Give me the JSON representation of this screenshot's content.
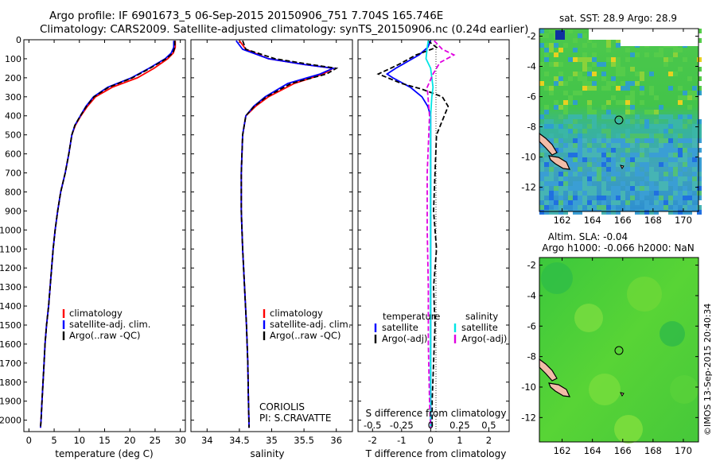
{
  "header": {
    "line1": "Argo profile: IF 6901673_5 06-Sep-2015 20150906_751 7.704S 165.746E",
    "line2": "Climatology: CARS2009. Satellite-adjusted climatology: synTS_20150906.nc (0.24d earlier)"
  },
  "colors": {
    "climatology": "#ff0000",
    "satellite": "#0000ff",
    "argo": "#000000",
    "sal_satellite": "#00e5e5",
    "sal_argo": "#e000e0"
  },
  "chart_data": [
    {
      "type": "line",
      "xlabel": "temperature (deg C)",
      "xlim": [
        -1,
        31
      ],
      "ylim": [
        2060,
        0
      ],
      "xticks": [
        0,
        5,
        10,
        15,
        20,
        25,
        30
      ],
      "yticks": [
        0,
        100,
        200,
        300,
        400,
        500,
        600,
        700,
        800,
        900,
        1000,
        1100,
        1200,
        1300,
        1400,
        1500,
        1600,
        1700,
        1800,
        1900,
        2000
      ],
      "legend": [
        "climatology",
        "satellite-adj. clim.",
        "Argo(..raw -QC)"
      ],
      "series": [
        {
          "name": "climatology",
          "style": "solid",
          "points": [
            [
              29.0,
              5
            ],
            [
              29.0,
              40
            ],
            [
              28.6,
              70
            ],
            [
              27.5,
              100
            ],
            [
              24.8,
              150
            ],
            [
              21.5,
              200
            ],
            [
              16.5,
              250
            ],
            [
              13.2,
              300
            ],
            [
              11.6,
              350
            ],
            [
              10.3,
              400
            ],
            [
              9.2,
              450
            ],
            [
              8.5,
              500
            ],
            [
              7.9,
              600
            ],
            [
              7.2,
              700
            ],
            [
              6.3,
              800
            ],
            [
              5.7,
              900
            ],
            [
              5.2,
              1000
            ],
            [
              4.8,
              1100
            ],
            [
              4.5,
              1200
            ],
            [
              4.2,
              1300
            ],
            [
              3.9,
              1400
            ],
            [
              3.5,
              1500
            ],
            [
              3.2,
              1600
            ],
            [
              3.0,
              1700
            ],
            [
              2.8,
              1800
            ],
            [
              2.6,
              1900
            ],
            [
              2.4,
              2000
            ],
            [
              2.3,
              2040
            ]
          ]
        },
        {
          "name": "satellite-adj. clim.",
          "style": "solid",
          "points": [
            [
              28.7,
              5
            ],
            [
              28.7,
              40
            ],
            [
              28.2,
              70
            ],
            [
              27.0,
              100
            ],
            [
              23.8,
              150
            ],
            [
              20.3,
              200
            ],
            [
              15.6,
              250
            ],
            [
              12.8,
              300
            ],
            [
              11.3,
              350
            ],
            [
              10.2,
              400
            ],
            [
              9.1,
              450
            ],
            [
              8.5,
              500
            ],
            [
              7.9,
              600
            ],
            [
              7.2,
              700
            ],
            [
              6.3,
              800
            ],
            [
              5.7,
              900
            ],
            [
              5.2,
              1000
            ],
            [
              4.8,
              1100
            ],
            [
              4.5,
              1200
            ],
            [
              4.2,
              1300
            ],
            [
              3.9,
              1400
            ],
            [
              3.5,
              1500
            ],
            [
              3.2,
              1600
            ],
            [
              3.0,
              1700
            ],
            [
              2.8,
              1800
            ],
            [
              2.6,
              1900
            ],
            [
              2.4,
              2000
            ],
            [
              2.3,
              2040
            ]
          ]
        },
        {
          "name": "Argo(..raw -QC)",
          "style": "dashed",
          "points": [
            [
              28.9,
              5
            ],
            [
              28.9,
              40
            ],
            [
              28.5,
              70
            ],
            [
              27.2,
              100
            ],
            [
              24.0,
              150
            ],
            [
              20.5,
              200
            ],
            [
              15.8,
              250
            ],
            [
              12.9,
              300
            ],
            [
              11.4,
              350
            ],
            [
              10.2,
              400
            ],
            [
              9.1,
              450
            ],
            [
              8.5,
              500
            ],
            [
              7.9,
              600
            ],
            [
              7.2,
              700
            ],
            [
              6.3,
              800
            ],
            [
              5.7,
              900
            ],
            [
              5.2,
              1000
            ],
            [
              4.8,
              1100
            ],
            [
              4.5,
              1200
            ],
            [
              4.2,
              1300
            ],
            [
              3.9,
              1400
            ],
            [
              3.5,
              1500
            ],
            [
              3.2,
              1600
            ],
            [
              3.0,
              1700
            ],
            [
              2.8,
              1800
            ],
            [
              2.6,
              1900
            ],
            [
              2.4,
              2000
            ],
            [
              2.3,
              2040
            ]
          ]
        }
      ]
    },
    {
      "type": "line",
      "xlabel": "salinity",
      "xlim": [
        33.75,
        36.25
      ],
      "ylim": [
        2060,
        0
      ],
      "xticks": [
        34,
        34.5,
        35,
        35.5,
        36
      ],
      "legend": [
        "climatology",
        "satellite-adj. clim.",
        "Argo(..raw -QC)"
      ],
      "annotation": [
        "CORIOLIS",
        "PI: S.CRAVATTE"
      ],
      "series": [
        {
          "name": "climatology",
          "style": "solid",
          "points": [
            [
              34.5,
              5
            ],
            [
              34.6,
              50
            ],
            [
              34.95,
              100
            ],
            [
              35.5,
              130
            ],
            [
              35.95,
              150
            ],
            [
              35.8,
              180
            ],
            [
              35.35,
              230
            ],
            [
              34.95,
              300
            ],
            [
              34.75,
              350
            ],
            [
              34.6,
              400
            ],
            [
              34.55,
              500
            ],
            [
              34.53,
              700
            ],
            [
              34.53,
              900
            ],
            [
              34.55,
              1100
            ],
            [
              34.58,
              1300
            ],
            [
              34.61,
              1500
            ],
            [
              34.63,
              1700
            ],
            [
              34.64,
              1900
            ],
            [
              34.65,
              2040
            ]
          ]
        },
        {
          "name": "satellite-adj. clim.",
          "style": "solid",
          "points": [
            [
              34.45,
              5
            ],
            [
              34.55,
              50
            ],
            [
              34.95,
              100
            ],
            [
              35.5,
              130
            ],
            [
              35.95,
              150
            ],
            [
              35.75,
              180
            ],
            [
              35.25,
              230
            ],
            [
              34.9,
              300
            ],
            [
              34.72,
              350
            ],
            [
              34.6,
              400
            ],
            [
              34.55,
              500
            ],
            [
              34.53,
              700
            ],
            [
              34.53,
              900
            ],
            [
              34.55,
              1100
            ],
            [
              34.58,
              1300
            ],
            [
              34.61,
              1500
            ],
            [
              34.63,
              1700
            ],
            [
              34.64,
              1900
            ],
            [
              34.65,
              2040
            ]
          ]
        },
        {
          "name": "Argo(..raw -QC)",
          "style": "dashed",
          "points": [
            [
              34.55,
              5
            ],
            [
              34.6,
              50
            ],
            [
              35.05,
              100
            ],
            [
              35.6,
              130
            ],
            [
              36.0,
              150
            ],
            [
              35.85,
              180
            ],
            [
              35.3,
              230
            ],
            [
              34.92,
              300
            ],
            [
              34.73,
              350
            ],
            [
              34.6,
              400
            ],
            [
              34.55,
              500
            ],
            [
              34.53,
              700
            ],
            [
              34.53,
              900
            ],
            [
              34.55,
              1100
            ],
            [
              34.58,
              1300
            ],
            [
              34.61,
              1500
            ],
            [
              34.63,
              1700
            ],
            [
              34.64,
              1900
            ],
            [
              34.65,
              2040
            ]
          ]
        }
      ]
    },
    {
      "type": "line",
      "xlabel": "T difference from climatology",
      "xlabel_top": "S difference from climatology",
      "xlim": [
        -2.5,
        2.7
      ],
      "ylim": [
        2060,
        0
      ],
      "xticks": [
        -2,
        -1,
        0,
        1,
        2
      ],
      "xticks_top": [
        -0.5,
        -0.25,
        0,
        0.25,
        0.5
      ],
      "legend_temperature_title": "temperature",
      "legend_salinity_title": "salinity",
      "legend": [
        "satellite",
        "Argo(-adj)",
        "satellite",
        "Argo(-adj)"
      ],
      "series": [
        {
          "name": "temperature satellite",
          "style": "solid",
          "points": [
            [
              0,
              5
            ],
            [
              -0.1,
              40
            ],
            [
              -0.4,
              80
            ],
            [
              -1.2,
              150
            ],
            [
              -1.5,
              180
            ],
            [
              -1.3,
              200
            ],
            [
              -0.7,
              250
            ],
            [
              -0.3,
              300
            ],
            [
              -0.1,
              350
            ],
            [
              0,
              400
            ],
            [
              0,
              2040
            ]
          ]
        },
        {
          "name": "temperature Argo(-adj)",
          "style": "dashed",
          "points": [
            [
              -0.1,
              5
            ],
            [
              0.2,
              40
            ],
            [
              -0.5,
              80
            ],
            [
              -1.1,
              130
            ],
            [
              -1.8,
              180
            ],
            [
              -1.0,
              230
            ],
            [
              -0.3,
              260
            ],
            [
              0.4,
              300
            ],
            [
              0.6,
              350
            ],
            [
              0.2,
              500
            ],
            [
              0.15,
              700
            ],
            [
              0.1,
              900
            ],
            [
              0.2,
              1100
            ],
            [
              0.1,
              1300
            ],
            [
              0.15,
              1500
            ],
            [
              0.1,
              1700
            ],
            [
              0.05,
              1900
            ],
            [
              0.05,
              2040
            ]
          ]
        },
        {
          "name": "salinity satellite",
          "style": "solid",
          "points": [
            [
              -0.02,
              5
            ],
            [
              -0.03,
              40
            ],
            [
              -0.04,
              100
            ],
            [
              0,
              150
            ],
            [
              0.01,
              200
            ],
            [
              0.02,
              250
            ],
            [
              0.01,
              300
            ],
            [
              0,
              400
            ],
            [
              0,
              2040
            ]
          ]
        },
        {
          "name": "salinity Argo(-adj)",
          "style": "dashed",
          "points": [
            [
              0.03,
              5
            ],
            [
              0.1,
              50
            ],
            [
              0.2,
              80
            ],
            [
              0.08,
              120
            ],
            [
              0.02,
              180
            ],
            [
              -0.03,
              250
            ],
            [
              -0.01,
              400
            ],
            [
              -0.03,
              700
            ],
            [
              -0.03,
              1000
            ],
            [
              -0.02,
              1300
            ],
            [
              -0.02,
              1600
            ],
            [
              -0.01,
              1900
            ],
            [
              0,
              2040
            ]
          ]
        }
      ]
    }
  ],
  "map_sst": {
    "title": "sat. SST: 28.9 Argo: 28.9",
    "xticks": [
      "162",
      "164",
      "166",
      "168",
      "170"
    ],
    "yticks": [
      "-2",
      "-4",
      "-6",
      "-8",
      "-10",
      "-12"
    ],
    "lon_range": [
      160.5,
      171.0
    ],
    "lat_range": [
      -13.6,
      -1.5
    ],
    "argo_position": [
      165.75,
      -7.7
    ]
  },
  "map_sla": {
    "title1": "Altim. SLA: -0.04",
    "title2": "Argo h1000: -0.066 h2000: NaN",
    "xticks": [
      "162",
      "164",
      "166",
      "168",
      "170"
    ],
    "yticks": [
      "-2",
      "-4",
      "-6",
      "-8",
      "-10",
      "-12"
    ],
    "lon_range": [
      160.5,
      171.0
    ],
    "lat_range": [
      -13.6,
      -1.5
    ],
    "argo_position": [
      165.75,
      -7.7
    ]
  },
  "footer": {
    "watermark": "©IMOS 13-Sep-2015 20:40:34"
  }
}
